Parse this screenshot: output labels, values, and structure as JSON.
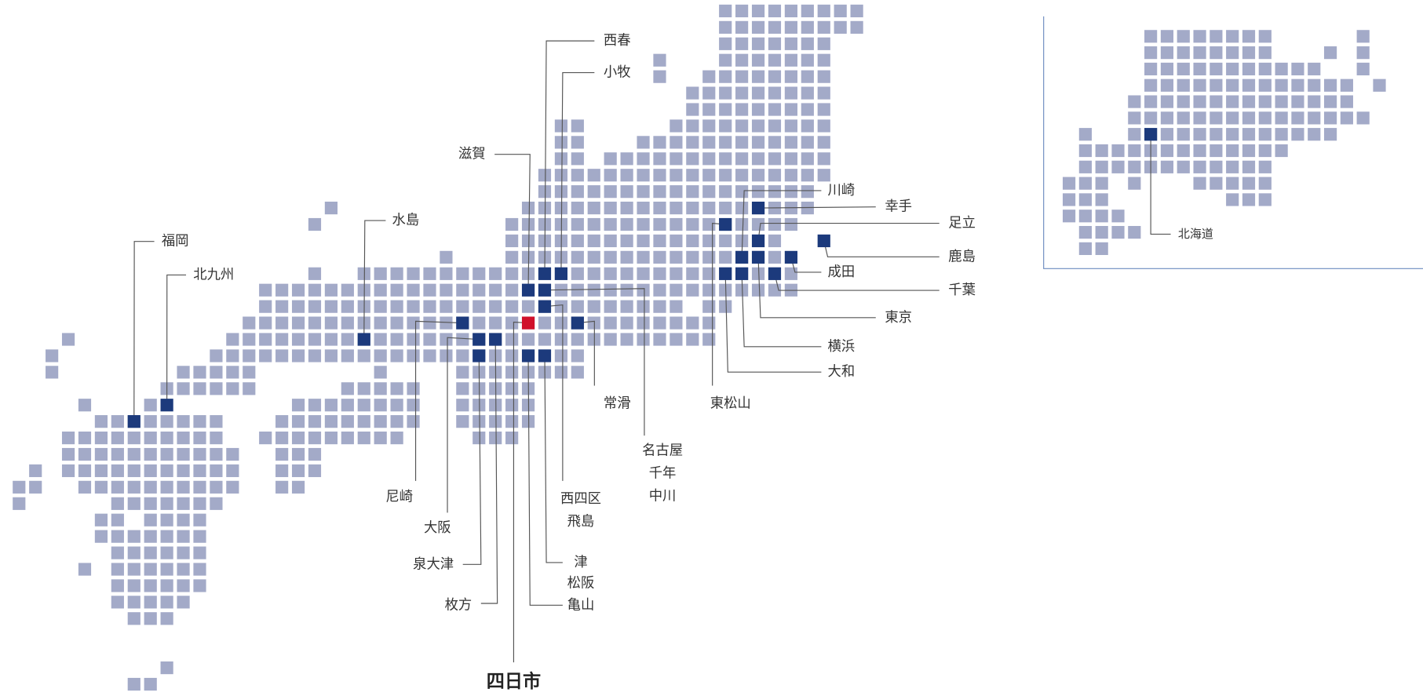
{
  "labels": [
    "西春",
    "小牧",
    "滋賀",
    "水島",
    "福岡",
    "北九州",
    "川崎",
    "幸手",
    "足立",
    "鹿島",
    "成田",
    "千葉",
    "東京",
    "横浜",
    "大和",
    "東松山",
    "名古屋",
    "千年",
    "中川",
    "常滑",
    "西四区",
    "飛島",
    "津",
    "松阪",
    "亀山",
    "四日市",
    "枚方",
    "泉大津",
    "大阪",
    "尼崎",
    "北海道"
  ]
}
